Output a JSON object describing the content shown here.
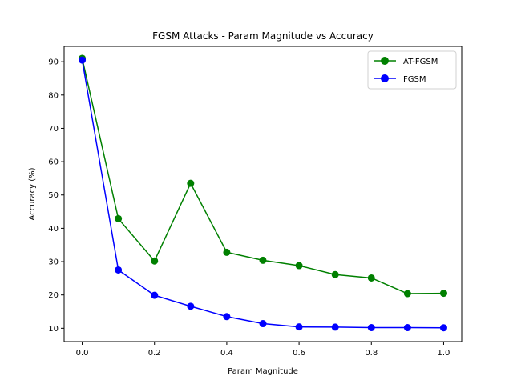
{
  "chart_data": {
    "type": "line",
    "title": "FGSM Attacks - Param Magnitude vs Accuracy",
    "xlabel": "Param Magnitude",
    "ylabel": "Accuracy (%)",
    "xlim": [
      -0.05,
      1.05
    ],
    "ylim": [
      6.0,
      94.6
    ],
    "x": [
      0.0,
      0.1,
      0.2,
      0.3,
      0.4,
      0.5,
      0.6,
      0.7,
      0.8,
      0.9,
      1.0
    ],
    "xticks": [
      "0.0",
      "0.2",
      "0.4",
      "0.6",
      "0.8",
      "1.0"
    ],
    "xtick_values": [
      0.0,
      0.2,
      0.4,
      0.6,
      0.8,
      1.0
    ],
    "yticks": [
      "10",
      "20",
      "30",
      "40",
      "50",
      "60",
      "70",
      "80",
      "90"
    ],
    "ytick_values": [
      10,
      20,
      30,
      40,
      50,
      60,
      70,
      80,
      90
    ],
    "grid": false,
    "legend_position": "top-right",
    "series": [
      {
        "name": "AT-FGSM",
        "color": "#008000",
        "marker": "circle",
        "values": [
          91.0,
          42.9,
          30.2,
          53.5,
          32.8,
          30.4,
          28.8,
          26.1,
          25.1,
          20.4,
          20.5
        ]
      },
      {
        "name": "FGSM",
        "color": "#0000ff",
        "marker": "circle",
        "values": [
          90.5,
          27.5,
          19.9,
          16.6,
          13.5,
          11.4,
          10.4,
          10.35,
          10.2,
          10.2,
          10.15
        ]
      }
    ]
  }
}
